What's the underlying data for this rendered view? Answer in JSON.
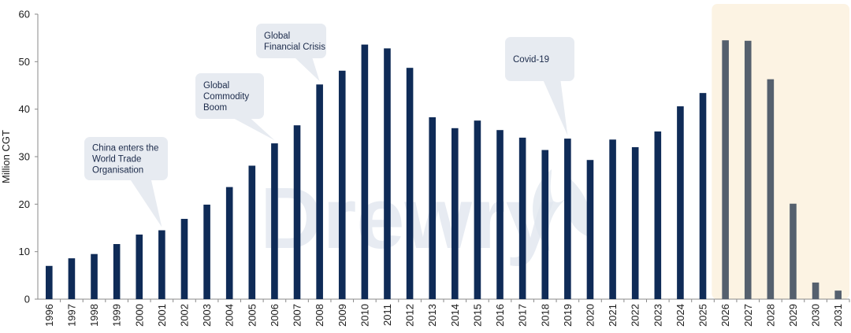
{
  "chart_data": {
    "type": "bar",
    "title": "",
    "xlabel": "",
    "ylabel": "Million CGT",
    "ylim": [
      0,
      60
    ],
    "yticks": [
      0,
      10,
      20,
      30,
      40,
      50,
      60
    ],
    "watermark": "Drewry",
    "categories": [
      "1996",
      "1997",
      "1998",
      "1999",
      "2000",
      "2001",
      "2002",
      "2003",
      "2004",
      "2005",
      "2006",
      "2007",
      "2008",
      "2009",
      "2010",
      "2011",
      "2012",
      "2013",
      "2014",
      "2015",
      "2016",
      "2017",
      "2018",
      "2019",
      "2020",
      "2021",
      "2022",
      "2023",
      "2024",
      "2025",
      "2026",
      "2027",
      "2028",
      "2029",
      "2030",
      "2031"
    ],
    "values": [
      7.0,
      8.6,
      9.5,
      11.6,
      13.6,
      14.5,
      16.9,
      19.9,
      23.6,
      28.1,
      32.8,
      36.6,
      45.2,
      48.1,
      53.6,
      52.8,
      48.7,
      38.3,
      36.0,
      37.6,
      35.6,
      34.0,
      31.4,
      33.8,
      29.3,
      33.6,
      32.0,
      35.3,
      40.6,
      43.4,
      54.5,
      54.4,
      46.3,
      20.1,
      3.5,
      1.8
    ],
    "forecast_start": "2026",
    "colors": {
      "actual": "#0f2b57",
      "forecast": "#55606e",
      "forecast_band": "#fcf3e3",
      "callout": "#e7ebf1"
    },
    "annotations": [
      {
        "lines": [
          "China enters the",
          "World Trade",
          "Organisation"
        ],
        "target": "2001"
      },
      {
        "lines": [
          "Global",
          "Commodity",
          "Boom"
        ],
        "target": "2006"
      },
      {
        "lines": [
          "Global",
          "Financial Crisis"
        ],
        "target": "2008"
      },
      {
        "lines": [
          "Covid-19"
        ],
        "target": "2019"
      }
    ]
  }
}
